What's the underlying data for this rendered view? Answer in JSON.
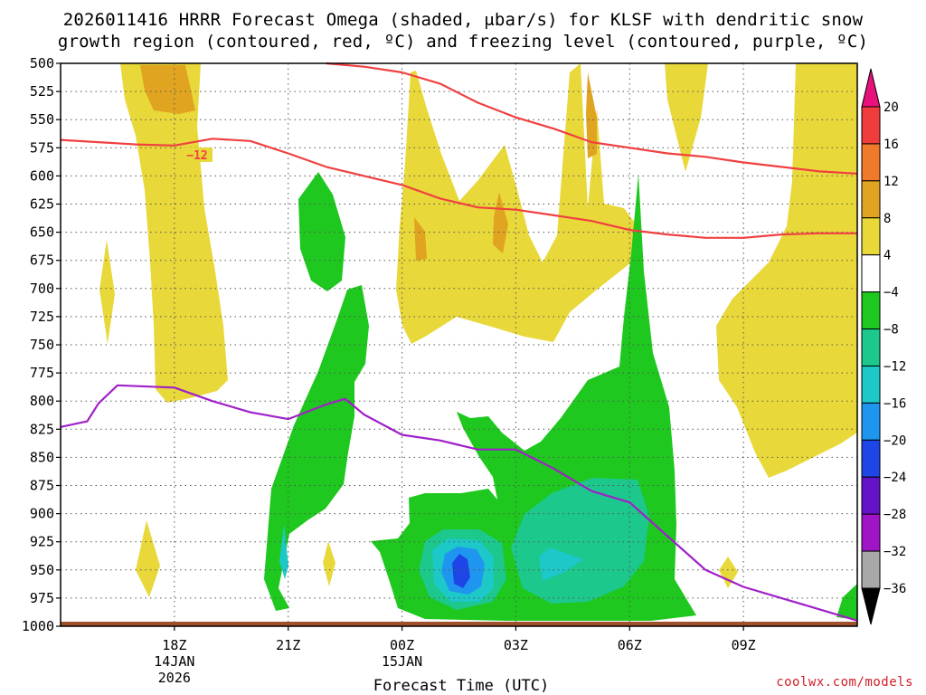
{
  "title": {
    "line1": "2026011416 HRRR Forecast Omega (shaded, μbar/s) for KLSF with dendritic snow",
    "line2": "growth region (contoured, red, ºC) and freezing level (contoured, purple, ºC)"
  },
  "credit": "coolwx.com/models",
  "chart_data": {
    "type": "heatmap",
    "xlabel": "Forecast Time (UTC)",
    "ylabel": "",
    "x_range_hours": [
      -3,
      18
    ],
    "ylim": [
      1000,
      500
    ],
    "y_scale": "linear",
    "grid": true,
    "y_ticks": [
      500,
      525,
      550,
      575,
      600,
      625,
      650,
      675,
      700,
      725,
      750,
      775,
      800,
      825,
      850,
      875,
      900,
      925,
      950,
      975,
      1000
    ],
    "x_ticks": [
      {
        "hour": 0,
        "label": "18Z",
        "sub1": "14JAN",
        "sub2": "2026"
      },
      {
        "hour": 3,
        "label": "21Z",
        "sub1": "",
        "sub2": ""
      },
      {
        "hour": 6,
        "label": "00Z",
        "sub1": "15JAN",
        "sub2": ""
      },
      {
        "hour": 9,
        "label": "03Z",
        "sub1": "",
        "sub2": ""
      },
      {
        "hour": 12,
        "label": "06Z",
        "sub1": "",
        "sub2": ""
      },
      {
        "hour": 15,
        "label": "09Z",
        "sub1": "",
        "sub2": ""
      }
    ],
    "colorbar": {
      "levels": [
        -36,
        -32,
        -28,
        -24,
        -20,
        -16,
        -12,
        -8,
        -4,
        4,
        8,
        12,
        16,
        20
      ],
      "labels": [
        "20",
        "16",
        "12",
        "8",
        "4",
        "−4",
        "−8",
        "−12",
        "−16",
        "−20",
        "−24",
        "−28",
        "−32",
        "−36"
      ],
      "colors": [
        "#e8107a",
        "#f03c3c",
        "#f07a2a",
        "#e0a420",
        "#e8d83a",
        "#ffffff",
        "#1ec81e",
        "#1cc88c",
        "#1cc8c8",
        "#1e96f0",
        "#1e46e6",
        "#6414c8",
        "#a014c8",
        "#a8a8a8",
        "#000000"
      ]
    },
    "contour_labels": [
      "−12"
    ],
    "series": [
      {
        "name": "",
        "color": "#f04040",
        "x": [
          -3,
          -2,
          -1,
          0,
          1,
          2,
          3,
          4,
          5,
          6,
          7,
          8,
          9,
          10,
          11,
          12,
          13,
          14,
          15,
          16,
          17,
          18
        ],
        "y": [
          568,
          570,
          572,
          573,
          567,
          569,
          580,
          592,
          600,
          608,
          620,
          628,
          630,
          635,
          640,
          648,
          652,
          655,
          655,
          652,
          651,
          651
        ]
      },
      {
        "name": "",
        "color": "#f04040",
        "x": [
          4,
          5,
          6,
          7,
          8,
          9,
          10,
          11,
          12,
          13,
          14,
          15,
          16,
          17,
          18
        ],
        "y": [
          500,
          503,
          508,
          518,
          535,
          548,
          558,
          570,
          575,
          580,
          583,
          588,
          592,
          596,
          598
        ]
      },
      {
        "name": "",
        "color": "#a020c8",
        "x": [
          -3,
          -2.3,
          -2,
          -1.5,
          0,
          1,
          2,
          3,
          4,
          4.5,
          5,
          6,
          7,
          8,
          9,
          10,
          11,
          12,
          13,
          14,
          15,
          16,
          17,
          18
        ],
        "y": [
          823,
          818,
          802,
          786,
          788,
          800,
          810,
          816,
          803,
          798,
          812,
          830,
          835,
          843,
          843,
          860,
          880,
          890,
          920,
          950,
          965,
          975,
          985,
          995
        ]
      }
    ]
  }
}
